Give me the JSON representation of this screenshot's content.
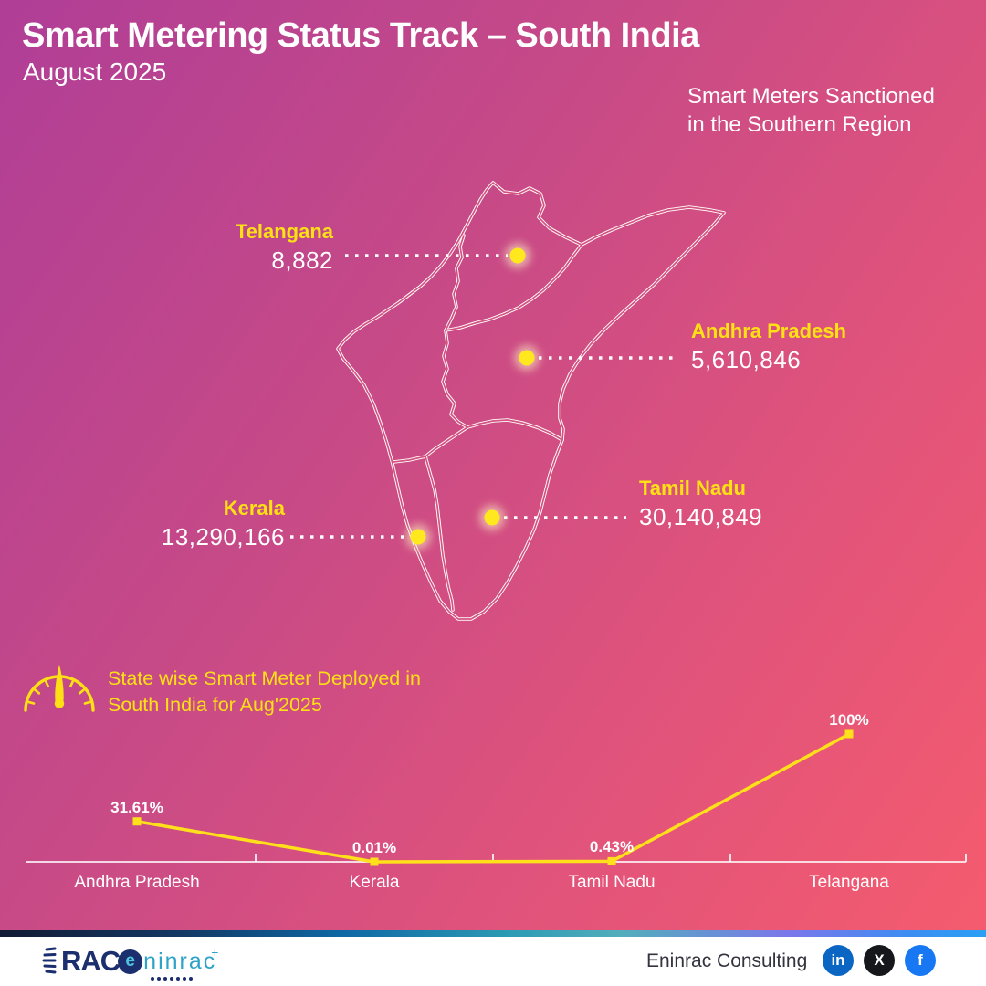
{
  "colors": {
    "background_top_left": "#B03E97",
    "background_bottom_right": "#F65C6D",
    "accent_yellow": "#FFE014",
    "map_line_white": "#FFFFFF",
    "footer_navy": "#1B2F6E",
    "footer_teal": "#2FA3C7",
    "linkedin_blue": "#0A66C2",
    "x_black": "#15171A",
    "facebook_blue": "#1877F2"
  },
  "header": {
    "title": "Smart Metering Status Track – South India",
    "subtitle": "August 2025",
    "note_lines": [
      "Smart Meters Sanctioned",
      "in the Southern Region"
    ]
  },
  "map_labels": [
    {
      "state": "Telangana",
      "value": "8,882"
    },
    {
      "state": "Andhra Pradesh",
      "value": "5,610,846"
    },
    {
      "state": "Kerala",
      "value": "13,290,166"
    },
    {
      "state": "Tamil Nadu",
      "value": "30,140,849"
    }
  ],
  "chart_data": {
    "type": "line",
    "title": "State wise Smart Meter Deployed in South India for Aug'2025",
    "categories": [
      "Andhra Pradesh",
      "Kerala",
      "Tamil Nadu",
      "Telangana"
    ],
    "values": [
      31.61,
      0.01,
      0.43,
      100
    ],
    "value_labels": [
      "31.61%",
      "0.01%",
      "0.43%",
      "100%"
    ],
    "xlabel": "",
    "ylabel": "",
    "ylim": [
      0,
      100
    ],
    "grid": false,
    "legend": "none",
    "line_color": "#FFE01A",
    "marker": "square"
  },
  "footer": {
    "logo_rac": "RAC",
    "logo_e": "e",
    "logo_eninrac": "ninrac",
    "company": "Eninrac Consulting",
    "social": [
      {
        "name": "linkedin",
        "glyph": "in",
        "color": "#0A66C2"
      },
      {
        "name": "x",
        "glyph": "X",
        "color": "#15171A"
      },
      {
        "name": "facebook",
        "glyph": "f",
        "color": "#1877F2"
      }
    ]
  }
}
